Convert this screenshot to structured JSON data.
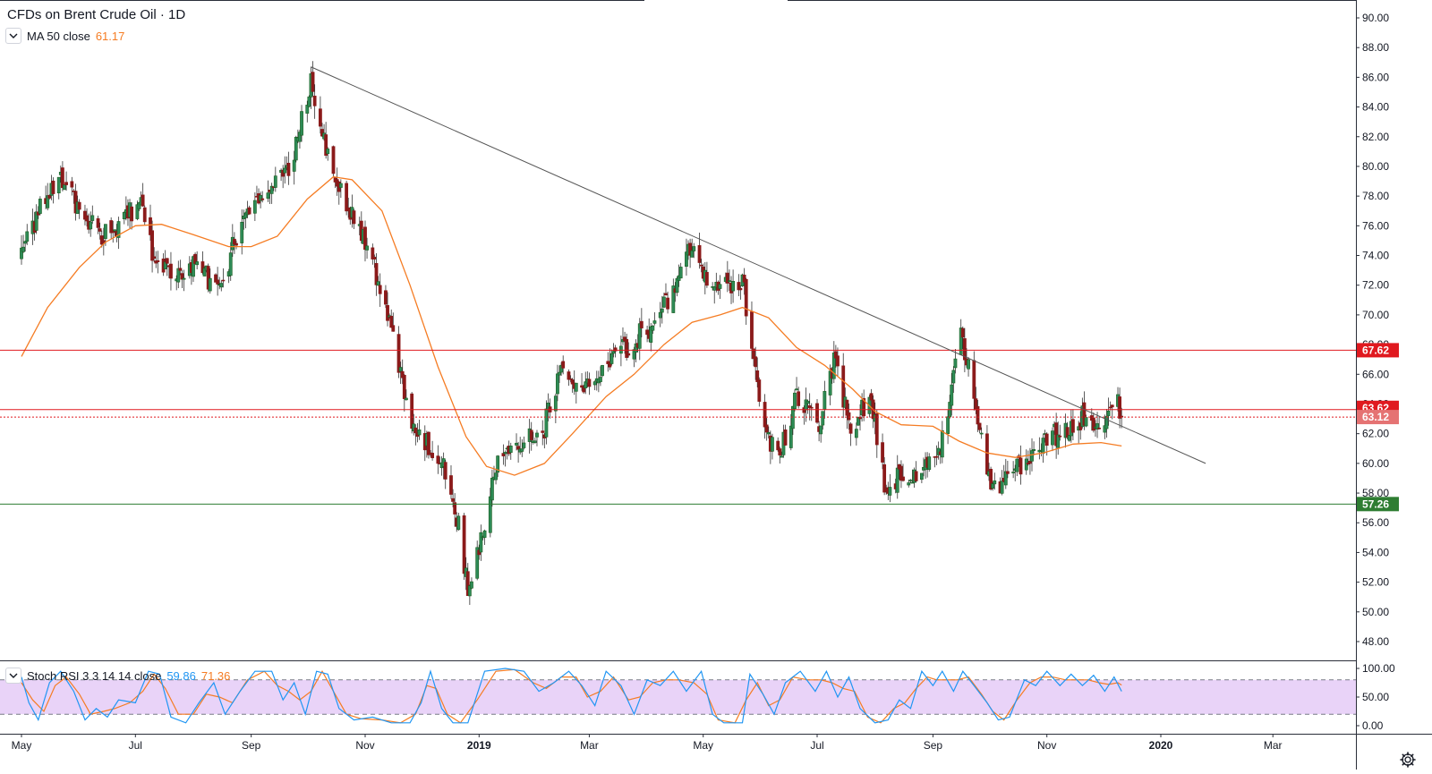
{
  "header": {
    "symbol": "CFDs on Brent Crude Oil · 1D"
  },
  "ma_legend": {
    "label": "MA 50 close",
    "value": "61.17",
    "color": "#f57c23"
  },
  "stoch_legend": {
    "label": "Stoch RSI 3 3 14 14 close",
    "k_value": "59.86",
    "d_value": "71.36",
    "k_color": "#2196f3",
    "d_color": "#f57c23"
  },
  "icons": {
    "collapse": "chevron-down-icon",
    "settings": "gear-icon"
  },
  "colors": {
    "up": "#26a69a",
    "up_body": "#1b5e20",
    "down": "#8b1a1a",
    "ma": "#f57c23",
    "trendline": "#555555",
    "resistance": "#e0191f",
    "support": "#2e7d32",
    "stoch_band": "#e1c4f5"
  },
  "chart_data": {
    "type": "candlestick",
    "title": "CFDs on Brent Crude Oil · 1D",
    "price_axis": {
      "ticks": [
        "90.00",
        "88.00",
        "86.00",
        "84.00",
        "82.00",
        "80.00",
        "78.00",
        "76.00",
        "74.00",
        "72.00",
        "70.00",
        "68.00",
        "66.00",
        "64.00",
        "62.00",
        "60.00",
        "58.00",
        "56.00",
        "54.00",
        "52.00",
        "50.00",
        "48.00"
      ],
      "range": [
        47,
        91
      ]
    },
    "time_axis": {
      "ticks": [
        "May",
        "Jul",
        "Sep",
        "Nov",
        "2019",
        "Mar",
        "May",
        "Jul",
        "Sep",
        "Nov",
        "2020",
        "Mar"
      ]
    },
    "price_path": [
      [
        "2018-05-01",
        73.8
      ],
      [
        "2018-05-12",
        77.5
      ],
      [
        "2018-05-22",
        79.4
      ],
      [
        "2018-06-01",
        77.0
      ],
      [
        "2018-06-12",
        75.5
      ],
      [
        "2018-06-22",
        75.8
      ],
      [
        "2018-07-03",
        77.8
      ],
      [
        "2018-07-12",
        73.5
      ],
      [
        "2018-07-22",
        72.5
      ],
      [
        "2018-08-01",
        73.6
      ],
      [
        "2018-08-15",
        71.5
      ],
      [
        "2018-08-23",
        75.0
      ],
      [
        "2018-09-03",
        77.8
      ],
      [
        "2018-09-12",
        78.6
      ],
      [
        "2018-09-22",
        80.0
      ],
      [
        "2018-10-03",
        86.0
      ],
      [
        "2018-10-12",
        80.8
      ],
      [
        "2018-10-24",
        76.9
      ],
      [
        "2018-11-01",
        75.0
      ],
      [
        "2018-11-12",
        70.5
      ],
      [
        "2018-11-23",
        64.0
      ],
      [
        "2018-11-30",
        62.0
      ],
      [
        "2018-12-12",
        60.0
      ],
      [
        "2018-12-20",
        56.5
      ],
      [
        "2018-12-26",
        51.5
      ],
      [
        "2019-01-04",
        56.0
      ],
      [
        "2019-01-12",
        60.7
      ],
      [
        "2019-01-25",
        61.5
      ],
      [
        "2019-02-05",
        62.5
      ],
      [
        "2019-02-15",
        66.5
      ],
      [
        "2019-02-25",
        65.0
      ],
      [
        "2019-03-08",
        65.8
      ],
      [
        "2019-03-20",
        67.8
      ],
      [
        "2019-04-03",
        69.3
      ],
      [
        "2019-04-15",
        71.5
      ],
      [
        "2019-04-25",
        74.8
      ],
      [
        "2019-05-06",
        71.3
      ],
      [
        "2019-05-15",
        72.0
      ],
      [
        "2019-05-22",
        72.5
      ],
      [
        "2019-05-30",
        65.0
      ],
      [
        "2019-06-05",
        61.5
      ],
      [
        "2019-06-12",
        61.0
      ],
      [
        "2019-06-20",
        64.5
      ],
      [
        "2019-07-02",
        62.5
      ],
      [
        "2019-07-10",
        66.8
      ],
      [
        "2019-07-19",
        62.5
      ],
      [
        "2019-07-30",
        64.5
      ],
      [
        "2019-08-07",
        57.8
      ],
      [
        "2019-08-15",
        59.5
      ],
      [
        "2019-08-26",
        59.0
      ],
      [
        "2019-09-06",
        61.5
      ],
      [
        "2019-09-16",
        69.0
      ],
      [
        "2019-09-24",
        64.0
      ],
      [
        "2019-10-03",
        58.0
      ],
      [
        "2019-10-10",
        59.0
      ],
      [
        "2019-10-22",
        60.0
      ],
      [
        "2019-11-01",
        61.7
      ],
      [
        "2019-11-12",
        62.2
      ],
      [
        "2019-11-22",
        63.3
      ],
      [
        "2019-11-29",
        62.4
      ],
      [
        "2019-12-05",
        63.4
      ],
      [
        "2019-12-09",
        64.0
      ],
      [
        "2019-12-11",
        63.1
      ]
    ],
    "series": [
      {
        "name": "MA 50 close",
        "last": 61.17,
        "points": [
          [
            "2018-05-01",
            67.2
          ],
          [
            "2018-05-15",
            70.5
          ],
          [
            "2018-06-01",
            73.2
          ],
          [
            "2018-06-15",
            74.9
          ],
          [
            "2018-07-01",
            76.0
          ],
          [
            "2018-07-15",
            76.1
          ],
          [
            "2018-08-01",
            75.4
          ],
          [
            "2018-08-20",
            74.6
          ],
          [
            "2018-09-01",
            74.6
          ],
          [
            "2018-09-15",
            75.3
          ],
          [
            "2018-10-01",
            77.8
          ],
          [
            "2018-10-15",
            79.3
          ],
          [
            "2018-10-25",
            79.1
          ],
          [
            "2018-11-10",
            77.0
          ],
          [
            "2018-11-25",
            72.0
          ],
          [
            "2018-12-10",
            66.5
          ],
          [
            "2018-12-25",
            61.8
          ],
          [
            "2019-01-05",
            59.8
          ],
          [
            "2019-01-20",
            59.2
          ],
          [
            "2019-02-05",
            60.0
          ],
          [
            "2019-02-20",
            62.0
          ],
          [
            "2019-03-10",
            64.5
          ],
          [
            "2019-03-25",
            66.0
          ],
          [
            "2019-04-10",
            68.0
          ],
          [
            "2019-04-25",
            69.5
          ],
          [
            "2019-05-10",
            70.0
          ],
          [
            "2019-05-22",
            70.5
          ],
          [
            "2019-06-05",
            69.8
          ],
          [
            "2019-06-20",
            67.8
          ],
          [
            "2019-07-05",
            66.6
          ],
          [
            "2019-07-20",
            65.0
          ],
          [
            "2019-08-01",
            63.5
          ],
          [
            "2019-08-15",
            62.6
          ],
          [
            "2019-09-01",
            62.5
          ],
          [
            "2019-09-15",
            61.5
          ],
          [
            "2019-09-30",
            60.7
          ],
          [
            "2019-10-15",
            60.4
          ],
          [
            "2019-10-30",
            60.7
          ],
          [
            "2019-11-15",
            61.3
          ],
          [
            "2019-11-30",
            61.4
          ],
          [
            "2019-12-11",
            61.17
          ]
        ]
      },
      {
        "name": "Trendline",
        "points": [
          [
            "2018-10-03",
            86.7
          ],
          [
            "2020-01-25",
            60.0
          ]
        ]
      }
    ],
    "levels": [
      {
        "label": "67.62",
        "value": 67.62,
        "style": "solid",
        "kind": "resistance"
      },
      {
        "label": "63.62",
        "value": 63.62,
        "style": "solid",
        "kind": "resistance"
      },
      {
        "label": "63.12",
        "value": 63.12,
        "style": "dotted",
        "kind": "last-price"
      },
      {
        "label": "57.26",
        "value": 57.26,
        "style": "solid",
        "kind": "support"
      }
    ],
    "stoch_rsi": {
      "ticks": [
        "100.00",
        "50.00",
        "0.00"
      ],
      "upper_band": 80,
      "lower_band": 20,
      "k": [
        [
          "2018-05-01",
          85
        ],
        [
          "2018-05-05",
          40
        ],
        [
          "2018-05-10",
          10
        ],
        [
          "2018-05-16",
          75
        ],
        [
          "2018-05-22",
          95
        ],
        [
          "2018-05-29",
          60
        ],
        [
          "2018-06-04",
          10
        ],
        [
          "2018-06-10",
          30
        ],
        [
          "2018-06-16",
          15
        ],
        [
          "2018-06-22",
          45
        ],
        [
          "2018-07-01",
          40
        ],
        [
          "2018-07-08",
          95
        ],
        [
          "2018-07-14",
          90
        ],
        [
          "2018-07-20",
          15
        ],
        [
          "2018-07-28",
          5
        ],
        [
          "2018-08-04",
          40
        ],
        [
          "2018-08-12",
          75
        ],
        [
          "2018-08-18",
          20
        ],
        [
          "2018-08-26",
          60
        ],
        [
          "2018-09-03",
          95
        ],
        [
          "2018-09-12",
          95
        ],
        [
          "2018-09-18",
          45
        ],
        [
          "2018-09-24",
          75
        ],
        [
          "2018-09-30",
          20
        ],
        [
          "2018-10-06",
          95
        ],
        [
          "2018-10-12",
          90
        ],
        [
          "2018-10-18",
          30
        ],
        [
          "2018-10-26",
          10
        ],
        [
          "2018-11-05",
          15
        ],
        [
          "2018-11-15",
          5
        ],
        [
          "2018-11-25",
          5
        ],
        [
          "2018-12-01",
          40
        ],
        [
          "2018-12-06",
          95
        ],
        [
          "2018-12-12",
          30
        ],
        [
          "2018-12-18",
          5
        ],
        [
          "2018-12-26",
          5
        ],
        [
          "2019-01-04",
          95
        ],
        [
          "2019-01-15",
          100
        ],
        [
          "2019-01-25",
          95
        ],
        [
          "2019-02-02",
          60
        ],
        [
          "2019-02-10",
          75
        ],
        [
          "2019-02-18",
          95
        ],
        [
          "2019-02-25",
          70
        ],
        [
          "2019-03-04",
          35
        ],
        [
          "2019-03-10",
          95
        ],
        [
          "2019-03-18",
          70
        ],
        [
          "2019-03-25",
          20
        ],
        [
          "2019-04-01",
          80
        ],
        [
          "2019-04-08",
          70
        ],
        [
          "2019-04-15",
          95
        ],
        [
          "2019-04-22",
          60
        ],
        [
          "2019-04-30",
          95
        ],
        [
          "2019-05-06",
          20
        ],
        [
          "2019-05-12",
          5
        ],
        [
          "2019-05-22",
          5
        ],
        [
          "2019-05-26",
          90
        ],
        [
          "2019-06-02",
          55
        ],
        [
          "2019-06-08",
          20
        ],
        [
          "2019-06-14",
          75
        ],
        [
          "2019-06-22",
          95
        ],
        [
          "2019-06-30",
          60
        ],
        [
          "2019-07-06",
          95
        ],
        [
          "2019-07-12",
          50
        ],
        [
          "2019-07-18",
          85
        ],
        [
          "2019-07-24",
          30
        ],
        [
          "2019-08-01",
          5
        ],
        [
          "2019-08-08",
          10
        ],
        [
          "2019-08-14",
          45
        ],
        [
          "2019-08-20",
          30
        ],
        [
          "2019-08-26",
          95
        ],
        [
          "2019-09-01",
          70
        ],
        [
          "2019-09-06",
          95
        ],
        [
          "2019-09-12",
          60
        ],
        [
          "2019-09-17",
          95
        ],
        [
          "2019-09-23",
          70
        ],
        [
          "2019-09-30",
          40
        ],
        [
          "2019-10-06",
          10
        ],
        [
          "2019-10-12",
          15
        ],
        [
          "2019-10-20",
          80
        ],
        [
          "2019-10-26",
          70
        ],
        [
          "2019-11-01",
          95
        ],
        [
          "2019-11-08",
          70
        ],
        [
          "2019-11-14",
          90
        ],
        [
          "2019-11-20",
          70
        ],
        [
          "2019-11-26",
          88
        ],
        [
          "2019-12-02",
          60
        ],
        [
          "2019-12-07",
          85
        ],
        [
          "2019-12-11",
          60
        ]
      ],
      "d": [
        [
          "2018-05-01",
          75
        ],
        [
          "2018-05-07",
          45
        ],
        [
          "2018-05-13",
          25
        ],
        [
          "2018-05-19",
          70
        ],
        [
          "2018-05-25",
          85
        ],
        [
          "2018-06-01",
          55
        ],
        [
          "2018-06-07",
          20
        ],
        [
          "2018-06-14",
          25
        ],
        [
          "2018-06-20",
          30
        ],
        [
          "2018-06-28",
          40
        ],
        [
          "2018-07-05",
          60
        ],
        [
          "2018-07-11",
          90
        ],
        [
          "2018-07-17",
          65
        ],
        [
          "2018-07-24",
          20
        ],
        [
          "2018-08-01",
          20
        ],
        [
          "2018-08-08",
          55
        ],
        [
          "2018-08-15",
          50
        ],
        [
          "2018-08-22",
          40
        ],
        [
          "2018-08-30",
          80
        ],
        [
          "2018-09-08",
          95
        ],
        [
          "2018-09-15",
          70
        ],
        [
          "2018-09-21",
          60
        ],
        [
          "2018-09-27",
          45
        ],
        [
          "2018-10-03",
          60
        ],
        [
          "2018-10-09",
          95
        ],
        [
          "2018-10-15",
          60
        ],
        [
          "2018-10-22",
          20
        ],
        [
          "2018-10-30",
          12
        ],
        [
          "2018-11-10",
          10
        ],
        [
          "2018-11-20",
          5
        ],
        [
          "2018-11-28",
          20
        ],
        [
          "2018-12-04",
          70
        ],
        [
          "2018-12-09",
          65
        ],
        [
          "2018-12-15",
          20
        ],
        [
          "2018-12-22",
          5
        ],
        [
          "2018-12-31",
          45
        ],
        [
          "2019-01-10",
          95
        ],
        [
          "2019-01-20",
          98
        ],
        [
          "2019-01-30",
          75
        ],
        [
          "2019-02-06",
          65
        ],
        [
          "2019-02-14",
          85
        ],
        [
          "2019-02-22",
          85
        ],
        [
          "2019-02-28",
          50
        ],
        [
          "2019-03-07",
          60
        ],
        [
          "2019-03-14",
          85
        ],
        [
          "2019-03-22",
          45
        ],
        [
          "2019-03-28",
          50
        ],
        [
          "2019-04-04",
          75
        ],
        [
          "2019-04-11",
          80
        ],
        [
          "2019-04-18",
          80
        ],
        [
          "2019-04-26",
          75
        ],
        [
          "2019-05-03",
          55
        ],
        [
          "2019-05-09",
          10
        ],
        [
          "2019-05-18",
          5
        ],
        [
          "2019-05-24",
          45
        ],
        [
          "2019-05-30",
          75
        ],
        [
          "2019-06-05",
          35
        ],
        [
          "2019-06-11",
          45
        ],
        [
          "2019-06-18",
          85
        ],
        [
          "2019-06-26",
          80
        ],
        [
          "2019-07-03",
          80
        ],
        [
          "2019-07-09",
          75
        ],
        [
          "2019-07-15",
          65
        ],
        [
          "2019-07-21",
          60
        ],
        [
          "2019-07-28",
          15
        ],
        [
          "2019-08-04",
          5
        ],
        [
          "2019-08-11",
          30
        ],
        [
          "2019-08-17",
          40
        ],
        [
          "2019-08-23",
          65
        ],
        [
          "2019-08-29",
          85
        ],
        [
          "2019-09-03",
          80
        ],
        [
          "2019-09-09",
          80
        ],
        [
          "2019-09-14",
          80
        ],
        [
          "2019-09-20",
          85
        ],
        [
          "2019-09-27",
          55
        ],
        [
          "2019-10-03",
          25
        ],
        [
          "2019-10-09",
          10
        ],
        [
          "2019-10-16",
          45
        ],
        [
          "2019-10-23",
          75
        ],
        [
          "2019-10-29",
          85
        ],
        [
          "2019-11-04",
          85
        ],
        [
          "2019-11-11",
          80
        ],
        [
          "2019-11-17",
          80
        ],
        [
          "2019-11-23",
          80
        ],
        [
          "2019-11-29",
          75
        ],
        [
          "2019-12-04",
          72
        ],
        [
          "2019-12-09",
          75
        ],
        [
          "2019-12-11",
          71
        ]
      ]
    }
  }
}
